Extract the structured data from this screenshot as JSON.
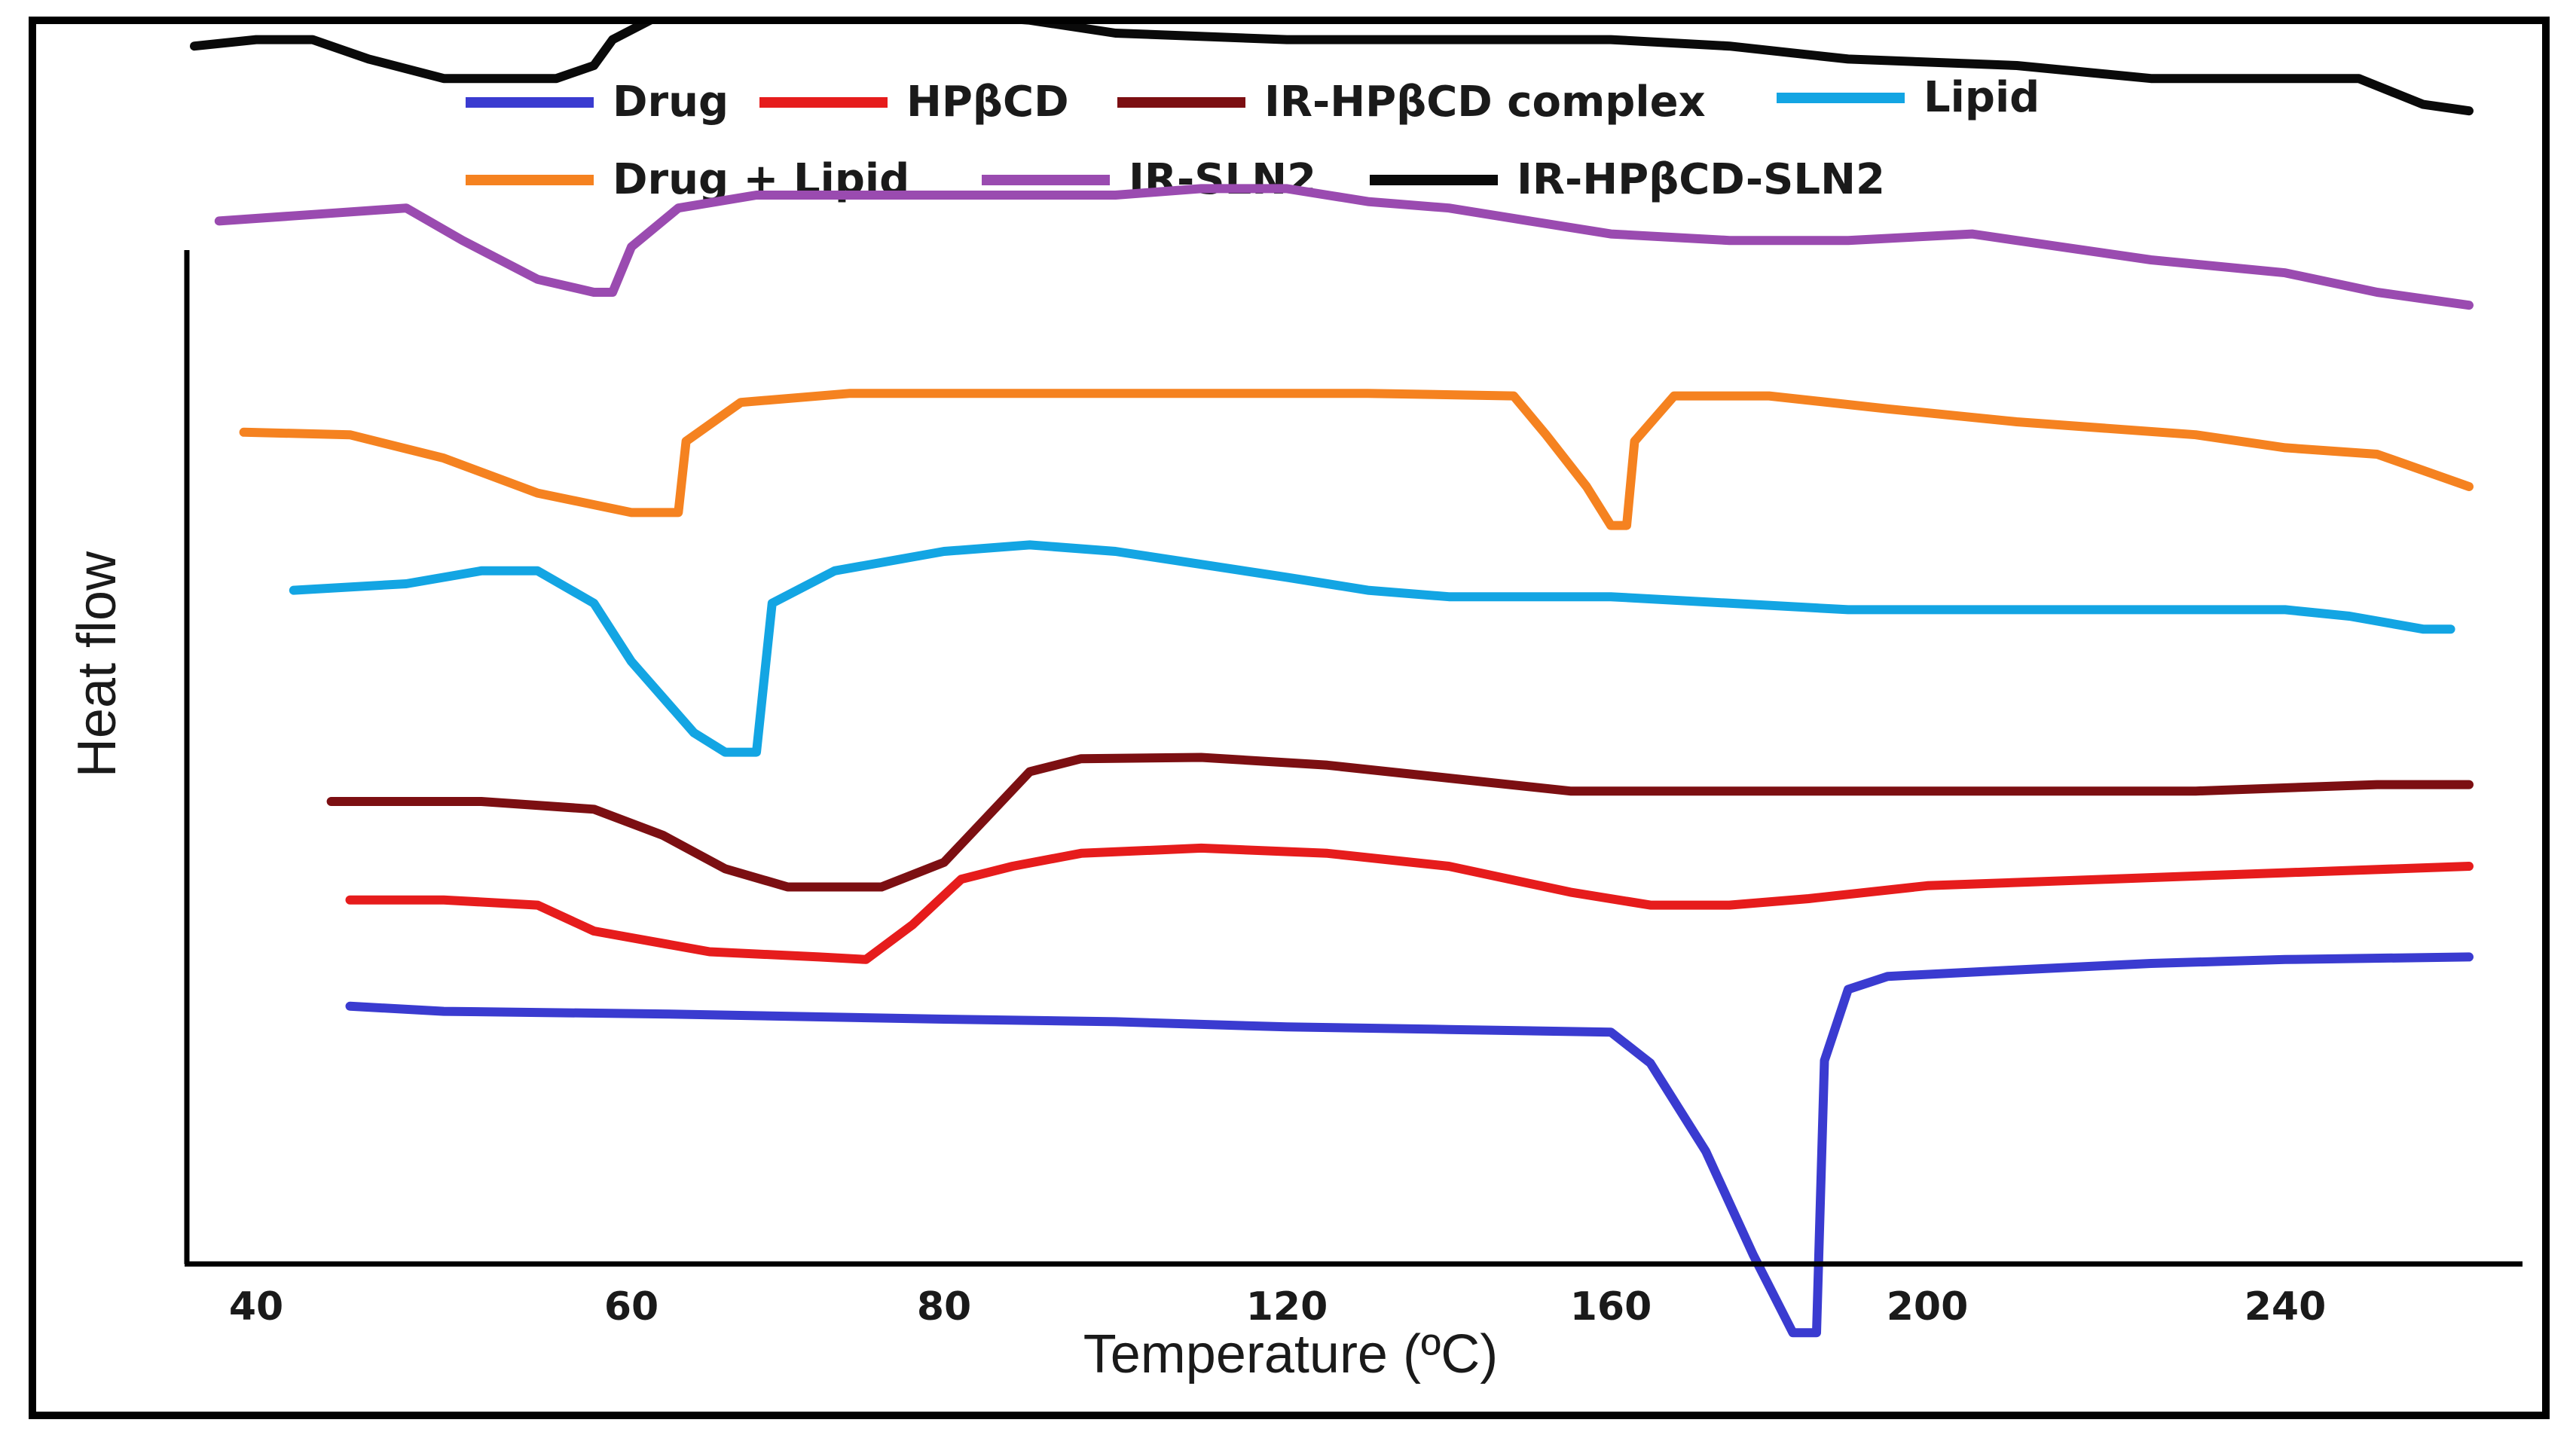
{
  "chart_data": {
    "type": "line",
    "title": "",
    "xlabel": "Temperature (ºC)",
    "ylabel": "Heat flow",
    "xlim": [
      35,
      265
    ],
    "x_ticks": [
      "40",
      "60",
      "80",
      "120",
      "160",
      "200",
      "240"
    ],
    "grid": false,
    "legend_position": "top",
    "series": [
      {
        "name": "Drug",
        "color": "#3a3bd0",
        "y_offset": 0,
        "points": [
          [
            45,
            -8
          ],
          [
            50,
            -12
          ],
          [
            62,
            -14
          ],
          [
            80,
            -18
          ],
          [
            100,
            -20
          ],
          [
            120,
            -24
          ],
          [
            140,
            -26
          ],
          [
            160,
            -28
          ],
          [
            165,
            -52
          ],
          [
            172,
            -120
          ],
          [
            178,
            -200
          ],
          [
            183,
            -260
          ],
          [
            186,
            -260
          ],
          [
            187,
            -50
          ],
          [
            190,
            5
          ],
          [
            195,
            15
          ],
          [
            210,
            20
          ],
          [
            225,
            25
          ],
          [
            240,
            28
          ],
          [
            260,
            30
          ]
        ]
      },
      {
        "name": "HPβCD",
        "color": "#e61c1c",
        "y_offset": 80,
        "points": [
          [
            45,
            -6
          ],
          [
            50,
            -6
          ],
          [
            55,
            -10
          ],
          [
            58,
            -30
          ],
          [
            65,
            -46
          ],
          [
            72,
            -50
          ],
          [
            75,
            -52
          ],
          [
            78,
            -25
          ],
          [
            82,
            10
          ],
          [
            88,
            20
          ],
          [
            96,
            30
          ],
          [
            110,
            34
          ],
          [
            125,
            30
          ],
          [
            140,
            20
          ],
          [
            155,
            0
          ],
          [
            165,
            -10
          ],
          [
            175,
            -10
          ],
          [
            185,
            -5
          ],
          [
            200,
            5
          ],
          [
            220,
            10
          ],
          [
            240,
            15
          ],
          [
            260,
            20
          ]
        ]
      },
      {
        "name": "IR-HPβCD complex",
        "color": "#7c0f12",
        "y_offset": 158,
        "points": [
          [
            44,
            -8
          ],
          [
            52,
            -8
          ],
          [
            58,
            -14
          ],
          [
            62,
            -34
          ],
          [
            66,
            -60
          ],
          [
            70,
            -74
          ],
          [
            76,
            -74
          ],
          [
            80,
            -55
          ],
          [
            85,
            -20
          ],
          [
            90,
            15
          ],
          [
            96,
            25
          ],
          [
            110,
            26
          ],
          [
            125,
            20
          ],
          [
            140,
            10
          ],
          [
            155,
            0
          ],
          [
            175,
            0
          ],
          [
            200,
            0
          ],
          [
            230,
            0
          ],
          [
            250,
            5
          ],
          [
            260,
            5
          ]
        ]
      },
      {
        "name": "Lipid",
        "color": "#13a5e3",
        "y_offset": 318,
        "points": [
          [
            42,
            -5
          ],
          [
            48,
            0
          ],
          [
            52,
            10
          ],
          [
            55,
            10
          ],
          [
            58,
            -15
          ],
          [
            60,
            -60
          ],
          [
            64,
            -115
          ],
          [
            66,
            -130
          ],
          [
            68,
            -130
          ],
          [
            69,
            -15
          ],
          [
            73,
            10
          ],
          [
            80,
            25
          ],
          [
            90,
            30
          ],
          [
            100,
            25
          ],
          [
            110,
            15
          ],
          [
            120,
            5
          ],
          [
            130,
            -5
          ],
          [
            140,
            -10
          ],
          [
            160,
            -10
          ],
          [
            175,
            -15
          ],
          [
            190,
            -20
          ],
          [
            210,
            -20
          ],
          [
            240,
            -20
          ],
          [
            247,
            -25
          ],
          [
            255,
            -35
          ],
          [
            258,
            -35
          ]
        ]
      },
      {
        "name": "Drug + Lipid",
        "color": "#f58220",
        "y_offset": 443,
        "points": [
          [
            39,
            -8
          ],
          [
            45,
            -10
          ],
          [
            50,
            -28
          ],
          [
            55,
            -55
          ],
          [
            60,
            -70
          ],
          [
            63,
            -70
          ],
          [
            63.5,
            -15
          ],
          [
            67,
            15
          ],
          [
            74,
            22
          ],
          [
            90,
            22
          ],
          [
            110,
            22
          ],
          [
            130,
            22
          ],
          [
            148,
            20
          ],
          [
            152,
            -10
          ],
          [
            157,
            -50
          ],
          [
            160,
            -80
          ],
          [
            162,
            -80
          ],
          [
            163,
            -15
          ],
          [
            168,
            20
          ],
          [
            180,
            20
          ],
          [
            195,
            10
          ],
          [
            210,
            0
          ],
          [
            230,
            -10
          ],
          [
            240,
            -20
          ],
          [
            250,
            -25
          ],
          [
            260,
            -50
          ]
        ]
      },
      {
        "name": "IR-SLN2",
        "color": "#9a4bb0",
        "y_offset": 603,
        "points": [
          [
            37,
            -5
          ],
          [
            43,
            0
          ],
          [
            48,
            5
          ],
          [
            51,
            -20
          ],
          [
            55,
            -50
          ],
          [
            58,
            -60
          ],
          [
            59,
            -60
          ],
          [
            60,
            -25
          ],
          [
            63,
            5
          ],
          [
            68,
            15
          ],
          [
            80,
            15
          ],
          [
            100,
            15
          ],
          [
            110,
            20
          ],
          [
            120,
            20
          ],
          [
            130,
            10
          ],
          [
            140,
            5
          ],
          [
            150,
            -5
          ],
          [
            160,
            -15
          ],
          [
            175,
            -20
          ],
          [
            190,
            -20
          ],
          [
            205,
            -15
          ],
          [
            215,
            -25
          ],
          [
            225,
            -35
          ],
          [
            240,
            -45
          ],
          [
            250,
            -60
          ],
          [
            260,
            -70
          ]
        ]
      },
      {
        "name": "IR-HPβCD-SLN2",
        "color": "#0a0a0a",
        "y_offset": 743,
        "points": [
          [
            35,
            -10
          ],
          [
            40,
            -5
          ],
          [
            43,
            -5
          ],
          [
            46,
            -20
          ],
          [
            50,
            -35
          ],
          [
            53,
            -35
          ],
          [
            56,
            -35
          ],
          [
            58,
            -25
          ],
          [
            59,
            -5
          ],
          [
            62,
            15
          ],
          [
            70,
            15
          ],
          [
            80,
            15
          ],
          [
            90,
            10
          ],
          [
            100,
            0
          ],
          [
            120,
            -5
          ],
          [
            140,
            -5
          ],
          [
            160,
            -5
          ],
          [
            175,
            -10
          ],
          [
            190,
            -20
          ],
          [
            210,
            -25
          ],
          [
            225,
            -35
          ],
          [
            240,
            -35
          ],
          [
            248,
            -35
          ],
          [
            255,
            -55
          ],
          [
            260,
            -60
          ]
        ]
      }
    ]
  }
}
